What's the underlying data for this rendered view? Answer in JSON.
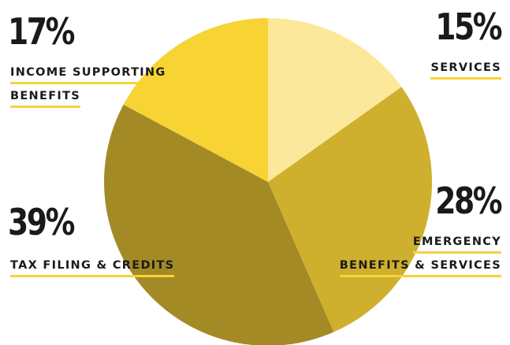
{
  "chart_data": {
    "type": "pie",
    "title": "",
    "slices": [
      {
        "label": "SERVICES",
        "value": 15,
        "display": "15%",
        "color": "#fbe89a"
      },
      {
        "label": "EMERGENCY BENEFITS & SERVICES",
        "value": 28,
        "display": "28%",
        "color": "#ceb02e"
      },
      {
        "label": "TAX FILING & CREDITS",
        "value": 39,
        "display": "39%",
        "color": "#a38a25"
      },
      {
        "label": "INCOME SUPPORTING BENEFITS",
        "value": 17,
        "display": "17%",
        "color": "#f7d334"
      }
    ],
    "start_angle_deg": 0,
    "direction": "clockwise"
  },
  "labels": {
    "income": {
      "pct": "17%",
      "line1": "INCOME SUPPORTING",
      "line2": "BENEFITS"
    },
    "services": {
      "pct": "15%",
      "line1": "SERVICES"
    },
    "emergency": {
      "pct": "28%",
      "line1": "EMERGENCY",
      "line2": "BENEFITS & SERVICES"
    },
    "tax": {
      "pct": "39%",
      "line1": "TAX FILING & CREDITS"
    }
  },
  "colors": {
    "underline": "#f7d23a",
    "text": "#1a1a1a"
  }
}
